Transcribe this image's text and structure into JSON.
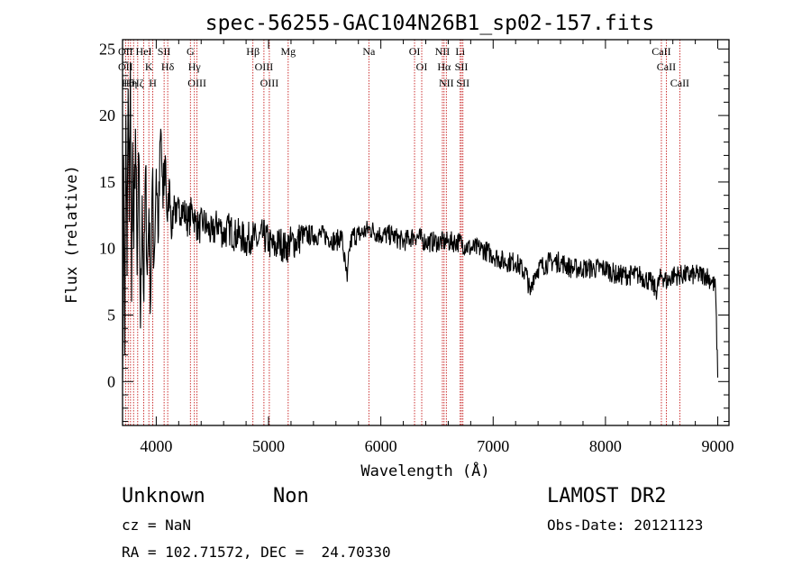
{
  "chart_data": {
    "type": "line",
    "title": "spec-56255-GAC104N26B1_sp02-157.fits",
    "xlabel": "Wavelength (Å)",
    "ylabel": "Flux (relative)",
    "xlim": [
      3700,
      9100
    ],
    "ylim": [
      -3.3,
      25.7
    ],
    "x_ticks": [
      4000,
      5000,
      6000,
      7000,
      8000,
      9000
    ],
    "y_ticks": [
      0,
      5,
      10,
      15,
      20,
      25
    ],
    "grid": false,
    "series": [
      {
        "x": [
          3700,
          3710,
          3720,
          3730,
          3740,
          3750,
          3760,
          3770,
          3780,
          3790,
          3800,
          3815,
          3830,
          3845,
          3860,
          3875,
          3890,
          3905,
          3920,
          3935,
          3950,
          3965,
          3980,
          4000,
          4020,
          4040,
          4060,
          4080,
          4100,
          4120,
          4140,
          4160,
          4180,
          4200,
          4230,
          4260,
          4290,
          4320,
          4350,
          4380,
          4420,
          4460,
          4500,
          4550,
          4600,
          4650,
          4700,
          4750,
          4800,
          4850,
          4900,
          4950,
          5000,
          5050,
          5100,
          5150,
          5200,
          5250,
          5300,
          5400,
          5500,
          5600,
          5650,
          5700,
          5720,
          5750,
          5800,
          5900,
          6000,
          6100,
          6200,
          6300,
          6400,
          6500,
          6600,
          6700,
          6800,
          6900,
          7000,
          7100,
          7200,
          7300,
          7330,
          7360,
          7400,
          7500,
          7600,
          7700,
          7800,
          7900,
          8000,
          8100,
          8200,
          8300,
          8400,
          8450,
          8500,
          8550,
          8600,
          8700,
          8800,
          8900,
          8950,
          8980,
          9000
        ],
        "y": [
          0.2,
          17,
          2,
          20,
          8,
          22,
          12,
          24,
          6,
          18,
          10,
          19,
          8,
          17,
          4,
          14,
          6,
          16,
          8,
          13,
          6,
          15,
          9,
          16,
          11,
          19,
          13,
          17,
          12,
          15,
          11,
          14,
          12,
          13,
          13,
          12.5,
          12,
          13,
          12,
          11.5,
          12,
          11.5,
          11,
          12,
          11,
          11.5,
          11,
          11,
          10.5,
          11,
          10.5,
          11,
          10.5,
          10,
          10.5,
          10,
          10.5,
          10.5,
          11,
          11,
          11,
          10.5,
          11,
          7.5,
          10,
          11,
          11,
          11.5,
          11,
          11,
          10.5,
          11,
          10.5,
          10.5,
          10.5,
          10.5,
          10,
          10,
          9.5,
          9,
          9,
          8,
          6.5,
          8,
          8.5,
          9,
          9,
          8.5,
          8.5,
          8.5,
          8.5,
          8,
          8,
          8,
          7.5,
          6.8,
          8,
          7.5,
          8,
          8,
          8,
          8,
          7.5,
          7,
          0.3
        ]
      }
    ],
    "lines": [
      {
        "wl": 3727,
        "labels": [
          "OII",
          "OII"
        ]
      },
      {
        "wl": 3750,
        "labels": [
          "Hθ"
        ]
      },
      {
        "wl": 3771,
        "labels": [
          "Hη"
        ]
      },
      {
        "wl": 3798,
        "labels": [
          ""
        ]
      },
      {
        "wl": 3835,
        "labels": [
          "Hζ"
        ]
      },
      {
        "wl": 3889,
        "labels": [
          "HeI"
        ]
      },
      {
        "wl": 3934,
        "labels": [
          "K"
        ]
      },
      {
        "wl": 3969,
        "labels": [
          "H"
        ]
      },
      {
        "wl": 4070,
        "labels": [
          "SII"
        ]
      },
      {
        "wl": 4102,
        "labels": [
          "Hδ"
        ]
      },
      {
        "wl": 4304,
        "labels": [
          "G"
        ]
      },
      {
        "wl": 4340,
        "labels": [
          "Hγ"
        ]
      },
      {
        "wl": 4363,
        "labels": [
          "OIII"
        ]
      },
      {
        "wl": 4861,
        "labels": [
          "Hβ"
        ]
      },
      {
        "wl": 4959,
        "labels": [
          "OIII"
        ]
      },
      {
        "wl": 5007,
        "labels": [
          "OIII"
        ]
      },
      {
        "wl": 5175,
        "labels": [
          "Mg"
        ]
      },
      {
        "wl": 5893,
        "labels": [
          "Na"
        ]
      },
      {
        "wl": 6300,
        "labels": [
          "OI"
        ]
      },
      {
        "wl": 6364,
        "labels": [
          "OI"
        ]
      },
      {
        "wl": 6548,
        "labels": [
          "NII"
        ]
      },
      {
        "wl": 6563,
        "labels": [
          "Hα"
        ]
      },
      {
        "wl": 6583,
        "labels": [
          "NII"
        ]
      },
      {
        "wl": 6707,
        "labels": [
          "Li"
        ]
      },
      {
        "wl": 6717,
        "labels": [
          "SII"
        ]
      },
      {
        "wl": 6731,
        "labels": [
          "SII"
        ]
      },
      {
        "wl": 8498,
        "labels": [
          "CaII"
        ]
      },
      {
        "wl": 8542,
        "labels": [
          "CaII"
        ]
      },
      {
        "wl": 8662,
        "labels": [
          "CaII"
        ]
      }
    ]
  },
  "footer": {
    "class_label": "Unknown",
    "subclass_label": "Non",
    "survey_label": "LAMOST DR2",
    "cz_text": "cz = NaN",
    "obs_date_text": "Obs-Date: 20121123",
    "coords_text": "RA = 102.71572, DEC =  24.70330"
  }
}
